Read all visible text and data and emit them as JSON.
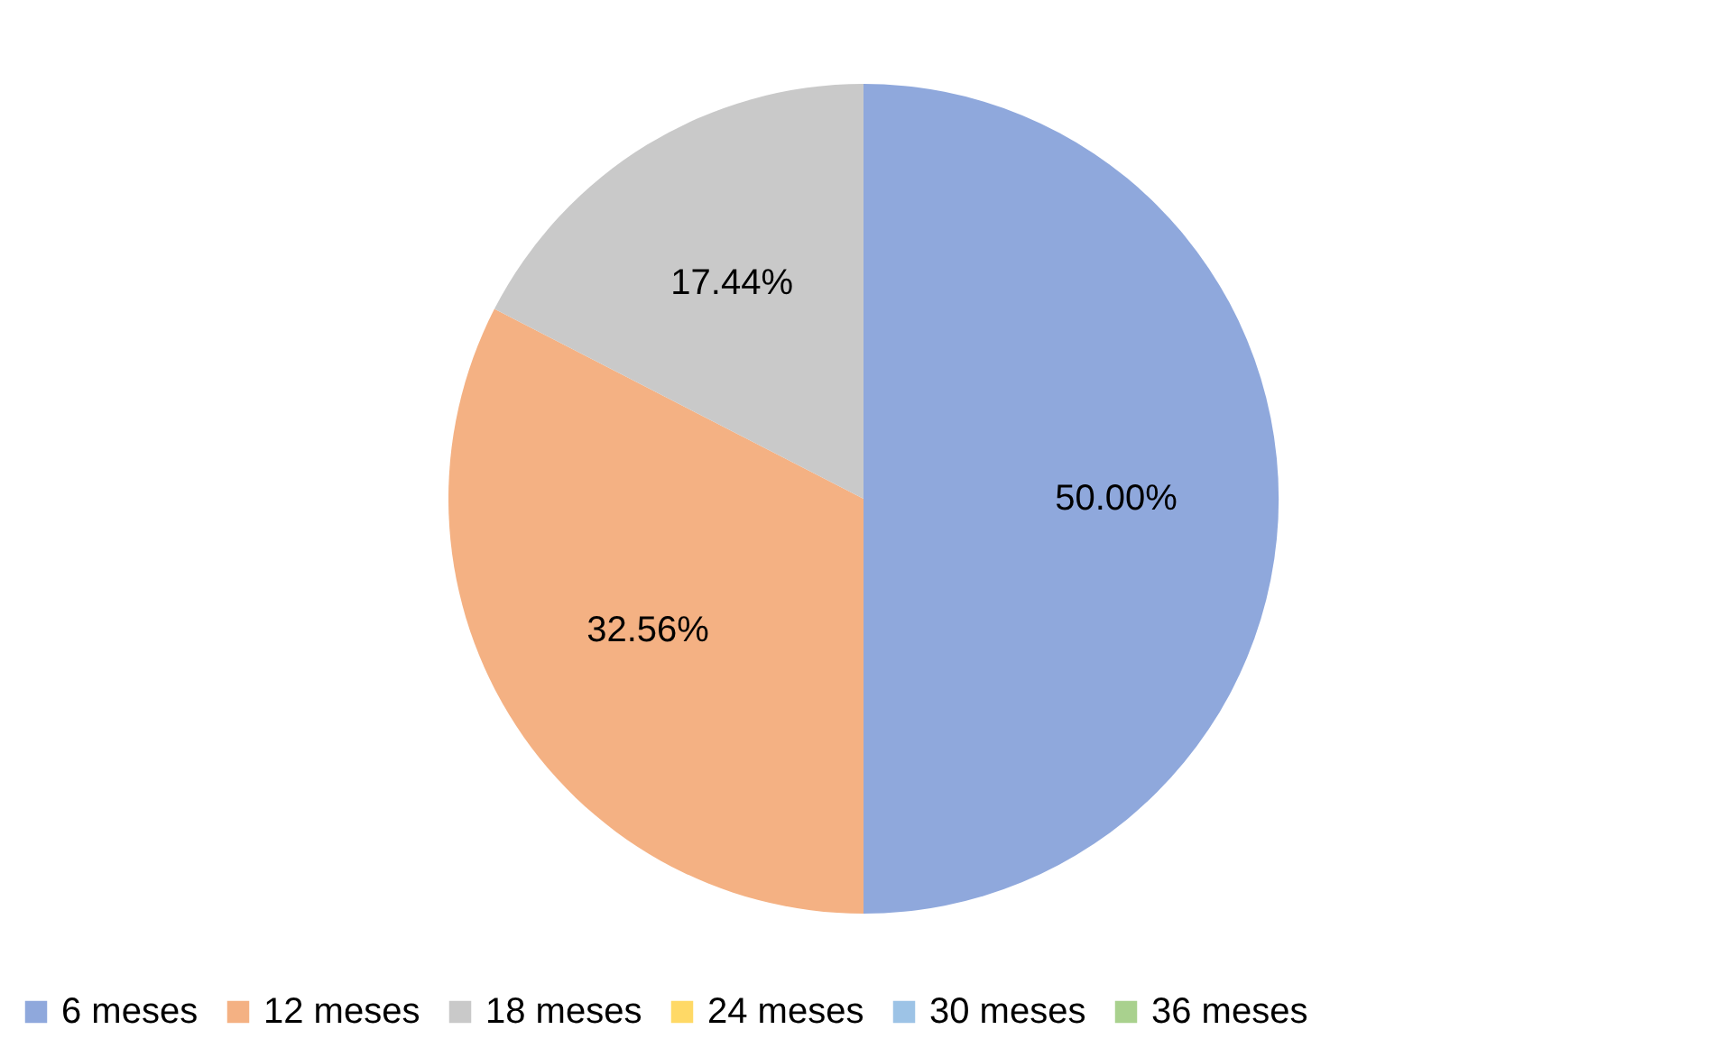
{
  "chart_data": {
    "type": "pie",
    "categories": [
      "6 meses",
      "12 meses",
      "18 meses",
      "24 meses",
      "30 meses",
      "36 meses"
    ],
    "values": [
      50.0,
      32.56,
      17.44,
      0,
      0,
      0
    ],
    "colors": [
      "#8fa8dc",
      "#f4b183",
      "#c9c9c9",
      "#ffd966",
      "#9dc3e6",
      "#a9d18e"
    ],
    "value_labels": [
      "50.00%",
      "32.56%",
      "17.44%",
      null,
      null,
      null
    ],
    "legend": "bottom"
  }
}
